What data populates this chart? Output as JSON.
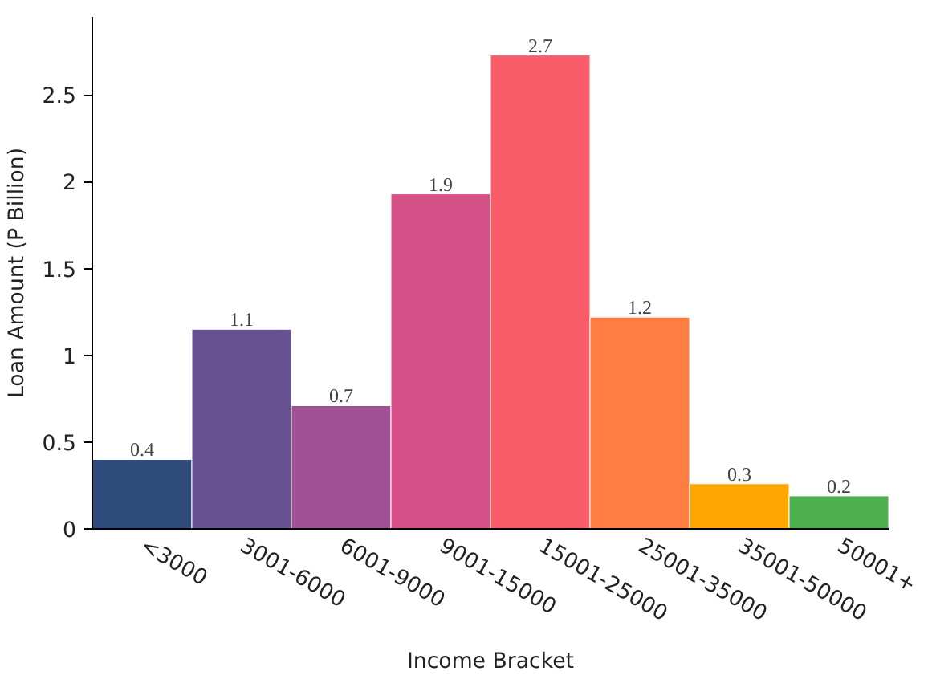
{
  "chart_data": {
    "type": "bar",
    "xlabel": "Income Bracket",
    "ylabel": "Loan Amount (P Billion)",
    "categories": [
      "<3000",
      "3001-6000",
      "6001-9000",
      "9001-15000",
      "15001-25000",
      "25001-35000",
      "35001-50000",
      "50001+"
    ],
    "values": [
      0.4,
      1.15,
      0.71,
      1.93,
      2.73,
      1.22,
      0.26,
      0.19
    ],
    "value_labels": [
      "0.4",
      "1.1",
      "0.7",
      "1.9",
      "2.7",
      "1.2",
      "0.3",
      "0.2"
    ],
    "colors": [
      "#2f4b7c",
      "#665191",
      "#a05195",
      "#d45087",
      "#f95d6a",
      "#ff7c43",
      "#ffa600",
      "#4caf50"
    ],
    "ylim": [
      0,
      2.95
    ],
    "yticks": [
      0,
      0.5,
      1,
      1.5,
      2,
      2.5
    ],
    "grid": false
  }
}
